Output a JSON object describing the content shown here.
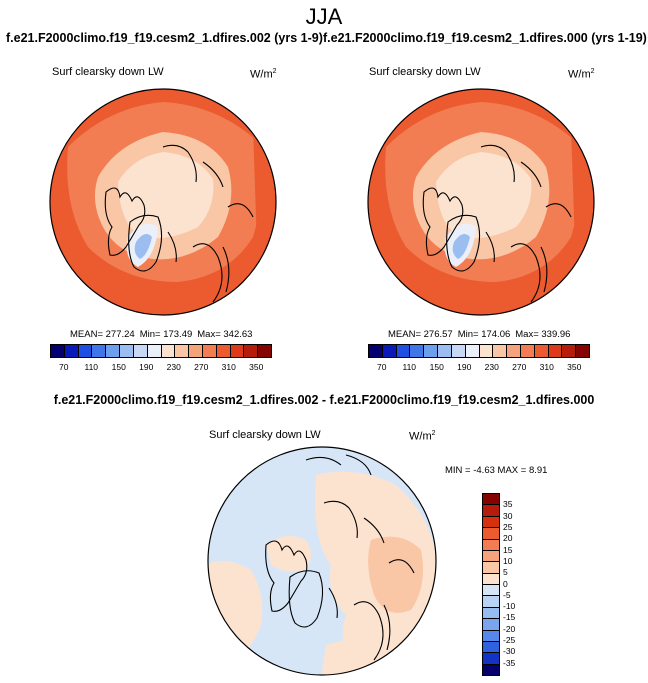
{
  "season": "JJA",
  "cases": {
    "left": "f.e21.F2000climo.f19_f19.cesm2_1.dfires.002 (yrs 1-9)",
    "right": "f.e21.F2000climo.f19_f19.cesm2_1.dfires.000 (yrs 1-19)"
  },
  "panels": [
    {
      "title": "Surf clearsky down LW",
      "units": "W/m",
      "units_exp": "2",
      "stats": {
        "mean": "MEAN= 277.24",
        "min": "Min= 173.49",
        "max": "Max= 342.63"
      }
    },
    {
      "title": "Surf clearsky down LW",
      "units": "W/m",
      "units_exp": "2",
      "stats": {
        "mean": "MEAN= 276.57",
        "min": "Min= 174.06",
        "max": "Max= 339.96"
      }
    }
  ],
  "diff": {
    "title": "f.e21.F2000climo.f19_f19.cesm2_1.dfires.002 - f.e21.F2000climo.f19_f19.cesm2_1.dfires.000",
    "panel_title": "Surf clearsky down LW",
    "units": "W/m",
    "units_exp": "2",
    "stats": "MIN =  -4.63 MAX =   8.91"
  },
  "colorbar_abs": {
    "colors": [
      "#06006e",
      "#0a1ab8",
      "#1f4ee0",
      "#3f78e6",
      "#6e9fec",
      "#9bbdf0",
      "#c6d8f6",
      "#eaeff9",
      "#fbe3d0",
      "#f9c6a6",
      "#f6a27b",
      "#f27d52",
      "#ec5a30",
      "#dc3a1a",
      "#b51c0c",
      "#850400"
    ],
    "labels": [
      "70",
      "110",
      "150",
      "190",
      "230",
      "270",
      "310",
      "350"
    ]
  },
  "colorbar_diff": {
    "colors": [
      "#850400",
      "#b51c0c",
      "#d7300f",
      "#ec5a30",
      "#f27d52",
      "#f6a27b",
      "#f9c6a6",
      "#fbe3d0",
      "#d7e6f7",
      "#b9d3f3",
      "#97bcf0",
      "#7ba4ee",
      "#5588ea",
      "#2f62df",
      "#1432c4",
      "#06006e"
    ],
    "labels": [
      "35",
      "30",
      "25",
      "20",
      "15",
      "10",
      "5",
      "0",
      "-5",
      "-10",
      "-15",
      "-20",
      "-25",
      "-30",
      "-35"
    ]
  }
}
